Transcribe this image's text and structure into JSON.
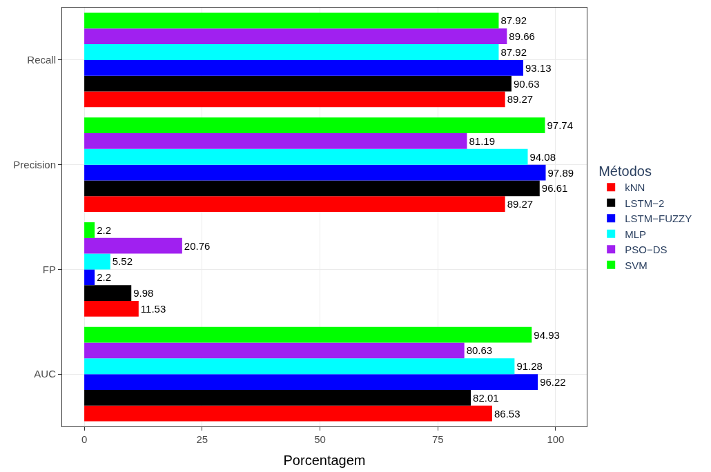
{
  "chart_data": {
    "type": "bar",
    "orientation": "horizontal",
    "xlabel": "Porcentagem",
    "legend_title": "Métodos",
    "categories": [
      "Recall",
      "Precision",
      "FP",
      "AUC"
    ],
    "series": [
      {
        "name": "kNN",
        "color": "#ff0000",
        "values": [
          89.27,
          89.27,
          11.53,
          86.53
        ]
      },
      {
        "name": "LSTM−2",
        "color": "#000000",
        "values": [
          90.63,
          96.61,
          9.98,
          82.01
        ]
      },
      {
        "name": "LSTM−FUZZY",
        "color": "#0000ff",
        "values": [
          93.13,
          97.89,
          2.2,
          96.22
        ]
      },
      {
        "name": "MLP",
        "color": "#00ffff",
        "values": [
          87.92,
          94.08,
          5.52,
          91.28
        ]
      },
      {
        "name": "PSO−DS",
        "color": "#a020f0",
        "values": [
          89.66,
          81.19,
          20.76,
          80.63
        ]
      },
      {
        "name": "SVM",
        "color": "#00ff00",
        "values": [
          87.92,
          97.74,
          2.2,
          94.93
        ]
      }
    ],
    "xlim": [
      -4.7,
      106.6
    ],
    "xticks": [
      0,
      25,
      50,
      75,
      100
    ],
    "grid": true,
    "legend": "right",
    "data_labels": true
  }
}
